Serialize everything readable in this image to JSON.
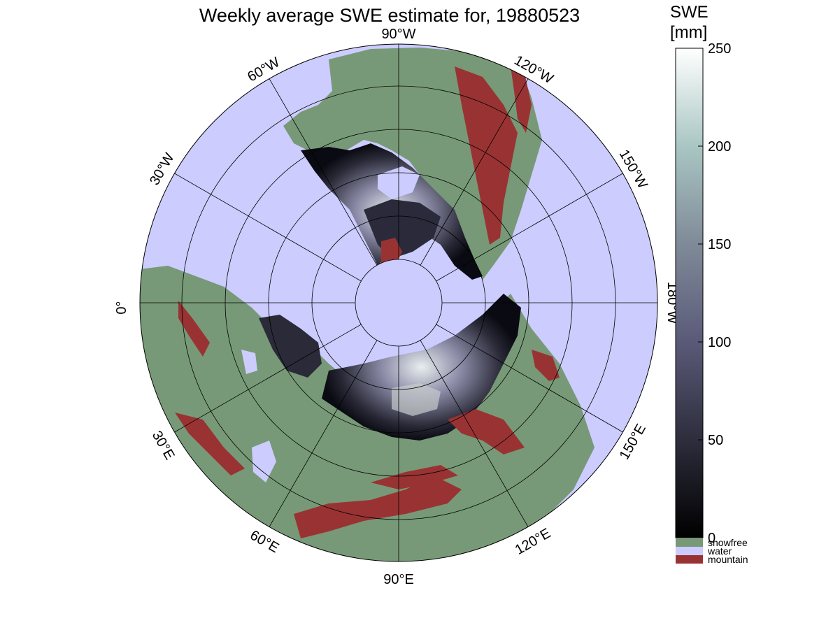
{
  "title": "Weekly average SWE estimate for, 19880523",
  "colorbar": {
    "label_line1": "SWE",
    "label_line2": "[mm]",
    "ticks": [
      "0",
      "50",
      "100",
      "150",
      "200",
      "250"
    ],
    "range": [
      0,
      250
    ]
  },
  "legend": [
    {
      "label": "snowfree",
      "color": "#779977"
    },
    {
      "label": "water",
      "color": "#ccccff"
    },
    {
      "label": "mountain",
      "color": "#993333"
    }
  ],
  "longitude_labels": {
    "lon_90W": "90°W",
    "lon_120W": "120°W",
    "lon_150W": "150°W",
    "lon_180W": "180°W",
    "lon_150E": "150°E",
    "lon_120E": "120°E",
    "lon_90E": "90°E",
    "lon_60E": "60°E",
    "lon_30E": "30°E",
    "lon_0": "0°",
    "lon_30W": "30°W",
    "lon_60W": "60°W"
  },
  "colors": {
    "water": "#ccccff",
    "snowfree": "#779977",
    "mountain": "#993333",
    "swe_low": "#0a0a12",
    "swe_mid": "#6a6a88",
    "swe_high": "#ffffff"
  }
}
